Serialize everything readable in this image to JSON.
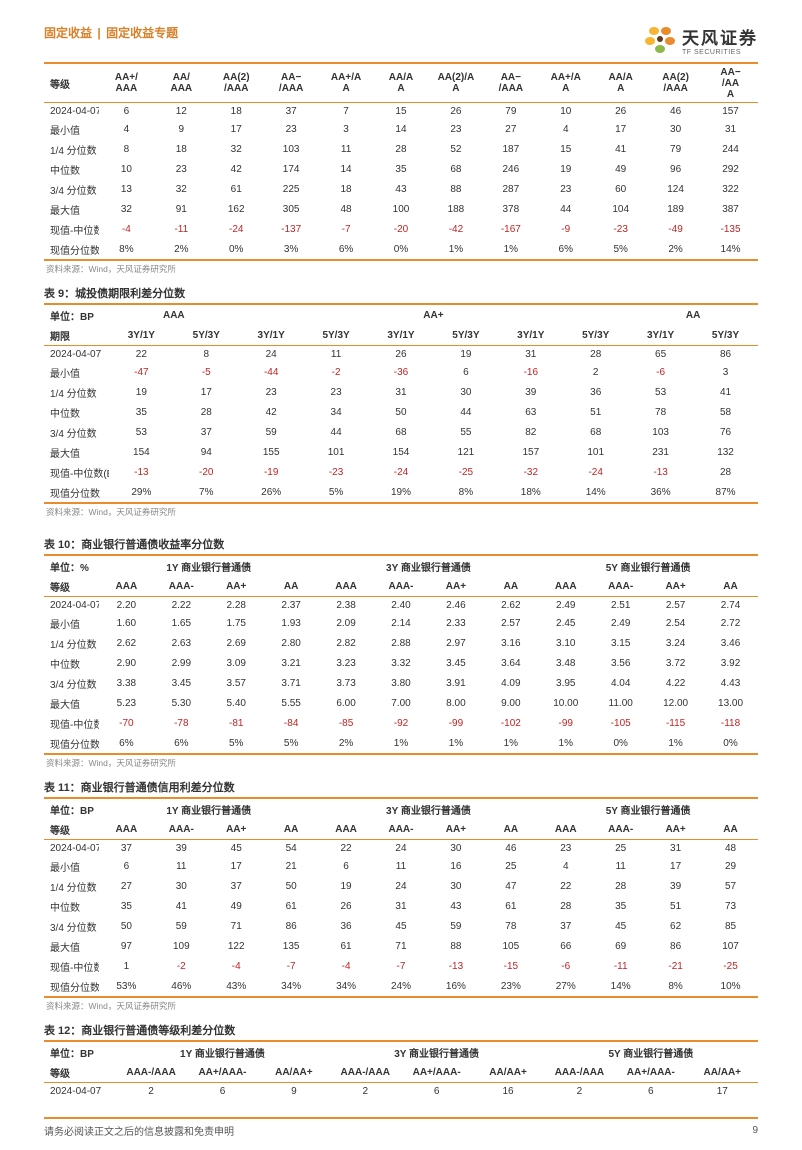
{
  "header": {
    "left_a": "固定收益",
    "sep": "|",
    "left_b": "固定收益专题",
    "logo_cn": "天风证券",
    "logo_en": "TF SECURITIES"
  },
  "common": {
    "unit_bp": "单位：BP",
    "unit_pct": "单位：%",
    "grade": "等级",
    "term": "期限"
  },
  "row_labels": [
    "2024-04-07",
    "最小值",
    "1/4 分位数",
    "中位数",
    "3/4 分位数",
    "最大值"
  ],
  "row_label_diff_bp": "现值-中位数(BP)",
  "row_label_diff": "现值-中位数",
  "row_label_pctile": "现值分位数",
  "row_label_pctile_pct": "现值分位数(%)",
  "source": "资料来源：Wind，天风证券研究所",
  "t8": {
    "grp": [
      "AA+/\nAAA",
      "AA/\nAAA",
      "AA(2)\n/AAA",
      "AA−\n/AAA",
      "AA+/A\nA",
      "AA/A\nA",
      "AA(2)/A\nA",
      "AA−\n/AAA",
      "AA+/A\nA",
      "AA/A\nA",
      "AA(2)\n/AAA",
      "AA−\n/AA\nA"
    ],
    "rows": [
      [
        "2024-04-07",
        "6",
        "12",
        "18",
        "37",
        "7",
        "15",
        "26",
        "79",
        "10",
        "26",
        "46",
        "157"
      ],
      [
        "最小值",
        "4",
        "9",
        "17",
        "23",
        "3",
        "14",
        "23",
        "27",
        "4",
        "17",
        "30",
        "31"
      ],
      [
        "1/4 分位数",
        "8",
        "18",
        "32",
        "103",
        "11",
        "28",
        "52",
        "187",
        "15",
        "41",
        "79",
        "244"
      ],
      [
        "中位数",
        "10",
        "23",
        "42",
        "174",
        "14",
        "35",
        "68",
        "246",
        "19",
        "49",
        "96",
        "292"
      ],
      [
        "3/4 分位数",
        "13",
        "32",
        "61",
        "225",
        "18",
        "43",
        "88",
        "287",
        "23",
        "60",
        "124",
        "322"
      ],
      [
        "最大值",
        "32",
        "91",
        "162",
        "305",
        "48",
        "100",
        "188",
        "378",
        "44",
        "104",
        "189",
        "387"
      ],
      [
        "现值-中位数",
        "-4",
        "-11",
        "-24",
        "-137",
        "-7",
        "-20",
        "-42",
        "-167",
        "-9",
        "-23",
        "-49",
        "-135"
      ],
      [
        "现值分位数(%)",
        "8%",
        "2%",
        "0%",
        "3%",
        "6%",
        "0%",
        "1%",
        "1%",
        "6%",
        "5%",
        "2%",
        "14%"
      ]
    ]
  },
  "t9": {
    "caption": "表 9：城投债期限利差分位数",
    "grp": [
      "AAA",
      "",
      "AA+",
      "",
      "AA"
    ],
    "sub": [
      "3Y/1Y",
      "5Y/3Y",
      "3Y/1Y",
      "5Y/3Y",
      "3Y/1Y",
      "5Y/3Y",
      "3Y/1Y",
      "5Y/3Y",
      "3Y/1Y",
      "5Y/3Y"
    ],
    "rows": [
      [
        "2024-04-07",
        "22",
        "8",
        "24",
        "11",
        "26",
        "19",
        "31",
        "28",
        "65",
        "86"
      ],
      [
        "最小值",
        "-47",
        "-5",
        "-44",
        "-2",
        "-36",
        "6",
        "-16",
        "2",
        "-6",
        "3"
      ],
      [
        "1/4 分位数",
        "19",
        "17",
        "23",
        "23",
        "31",
        "30",
        "39",
        "36",
        "53",
        "41"
      ],
      [
        "中位数",
        "35",
        "28",
        "42",
        "34",
        "50",
        "44",
        "63",
        "51",
        "78",
        "58"
      ],
      [
        "3/4 分位数",
        "53",
        "37",
        "59",
        "44",
        "68",
        "55",
        "82",
        "68",
        "103",
        "76"
      ],
      [
        "最大值",
        "154",
        "94",
        "155",
        "101",
        "154",
        "121",
        "157",
        "101",
        "231",
        "132"
      ],
      [
        "现值-中位数(BP)",
        "-13",
        "-20",
        "-19",
        "-23",
        "-24",
        "-25",
        "-32",
        "-24",
        "-13",
        "28"
      ],
      [
        "现值分位数",
        "29%",
        "7%",
        "26%",
        "5%",
        "19%",
        "8%",
        "18%",
        "14%",
        "36%",
        "87%"
      ]
    ]
  },
  "t10": {
    "caption": "表 10：商业银行普通债收益率分位数",
    "grp": [
      "1Y 商业银行普通债",
      "3Y 商业银行普通债",
      "5Y 商业银行普通债"
    ],
    "sub": [
      "AAA",
      "AAA-",
      "AA+",
      "AA",
      "AAA",
      "AAA-",
      "AA+",
      "AA",
      "AAA",
      "AAA-",
      "AA+",
      "AA"
    ],
    "rows": [
      [
        "2024-04-07",
        "2.20",
        "2.22",
        "2.28",
        "2.37",
        "2.38",
        "2.40",
        "2.46",
        "2.62",
        "2.49",
        "2.51",
        "2.57",
        "2.74"
      ],
      [
        "最小值",
        "1.60",
        "1.65",
        "1.75",
        "1.93",
        "2.09",
        "2.14",
        "2.33",
        "2.57",
        "2.45",
        "2.49",
        "2.54",
        "2.72"
      ],
      [
        "1/4 分位数",
        "2.62",
        "2.63",
        "2.69",
        "2.80",
        "2.82",
        "2.88",
        "2.97",
        "3.16",
        "3.10",
        "3.15",
        "3.24",
        "3.46"
      ],
      [
        "中位数",
        "2.90",
        "2.99",
        "3.09",
        "3.21",
        "3.23",
        "3.32",
        "3.45",
        "3.64",
        "3.48",
        "3.56",
        "3.72",
        "3.92"
      ],
      [
        "3/4 分位数",
        "3.38",
        "3.45",
        "3.57",
        "3.71",
        "3.73",
        "3.80",
        "3.91",
        "4.09",
        "3.95",
        "4.04",
        "4.22",
        "4.43"
      ],
      [
        "最大值",
        "5.23",
        "5.30",
        "5.40",
        "5.55",
        "6.00",
        "7.00",
        "8.00",
        "9.00",
        "10.00",
        "11.00",
        "12.00",
        "13.00"
      ],
      [
        "现值-中位数(BP)",
        "-70",
        "-78",
        "-81",
        "-84",
        "-85",
        "-92",
        "-99",
        "-102",
        "-99",
        "-105",
        "-115",
        "-118"
      ],
      [
        "现值分位数",
        "6%",
        "6%",
        "5%",
        "5%",
        "2%",
        "1%",
        "1%",
        "1%",
        "1%",
        "0%",
        "1%",
        "0%"
      ]
    ]
  },
  "t11": {
    "caption": "表 11：商业银行普通债信用利差分位数",
    "grp": [
      "1Y 商业银行普通债",
      "3Y 商业银行普通债",
      "5Y 商业银行普通债"
    ],
    "sub": [
      "AAA",
      "AAA-",
      "AA+",
      "AA",
      "AAA",
      "AAA-",
      "AA+",
      "AA",
      "AAA",
      "AAA-",
      "AA+",
      "AA"
    ],
    "rows": [
      [
        "2024-04-07",
        "37",
        "39",
        "45",
        "54",
        "22",
        "24",
        "30",
        "46",
        "23",
        "25",
        "31",
        "48"
      ],
      [
        "最小值",
        "6",
        "11",
        "17",
        "21",
        "6",
        "11",
        "16",
        "25",
        "4",
        "11",
        "17",
        "29"
      ],
      [
        "1/4 分位数",
        "27",
        "30",
        "37",
        "50",
        "19",
        "24",
        "30",
        "47",
        "22",
        "28",
        "39",
        "57"
      ],
      [
        "中位数",
        "35",
        "41",
        "49",
        "61",
        "26",
        "31",
        "43",
        "61",
        "28",
        "35",
        "51",
        "73"
      ],
      [
        "3/4 分位数",
        "50",
        "59",
        "71",
        "86",
        "36",
        "45",
        "59",
        "78",
        "37",
        "45",
        "62",
        "85"
      ],
      [
        "最大值",
        "97",
        "109",
        "122",
        "135",
        "61",
        "71",
        "88",
        "105",
        "66",
        "69",
        "86",
        "107"
      ],
      [
        "现值-中位数(BP)",
        "1",
        "-2",
        "-4",
        "-7",
        "-4",
        "-7",
        "-13",
        "-15",
        "-6",
        "-11",
        "-21",
        "-25"
      ],
      [
        "现值分位数",
        "53%",
        "46%",
        "43%",
        "34%",
        "34%",
        "24%",
        "16%",
        "23%",
        "27%",
        "14%",
        "8%",
        "10%"
      ]
    ]
  },
  "t12": {
    "caption": "表 12：商业银行普通债等级利差分位数",
    "grp": [
      "1Y 商业银行普通债",
      "3Y 商业银行普通债",
      "5Y 商业银行普通债"
    ],
    "sub": [
      "AAA-/AAA",
      "AA+/AAA-",
      "AA/AA+",
      "AAA-/AAA",
      "AA+/AAA-",
      "AA/AA+",
      "AAA-/AAA",
      "AA+/AAA-",
      "AA/AA+"
    ],
    "rows": [
      [
        "2024-04-07",
        "2",
        "6",
        "9",
        "2",
        "6",
        "16",
        "2",
        "6",
        "17"
      ]
    ]
  },
  "footer": {
    "disclaimer": "请务必阅读正文之后的信息披露和免责申明",
    "page": "9"
  },
  "colors": {
    "accent": "#e98c2d",
    "neg": "#c02424"
  }
}
